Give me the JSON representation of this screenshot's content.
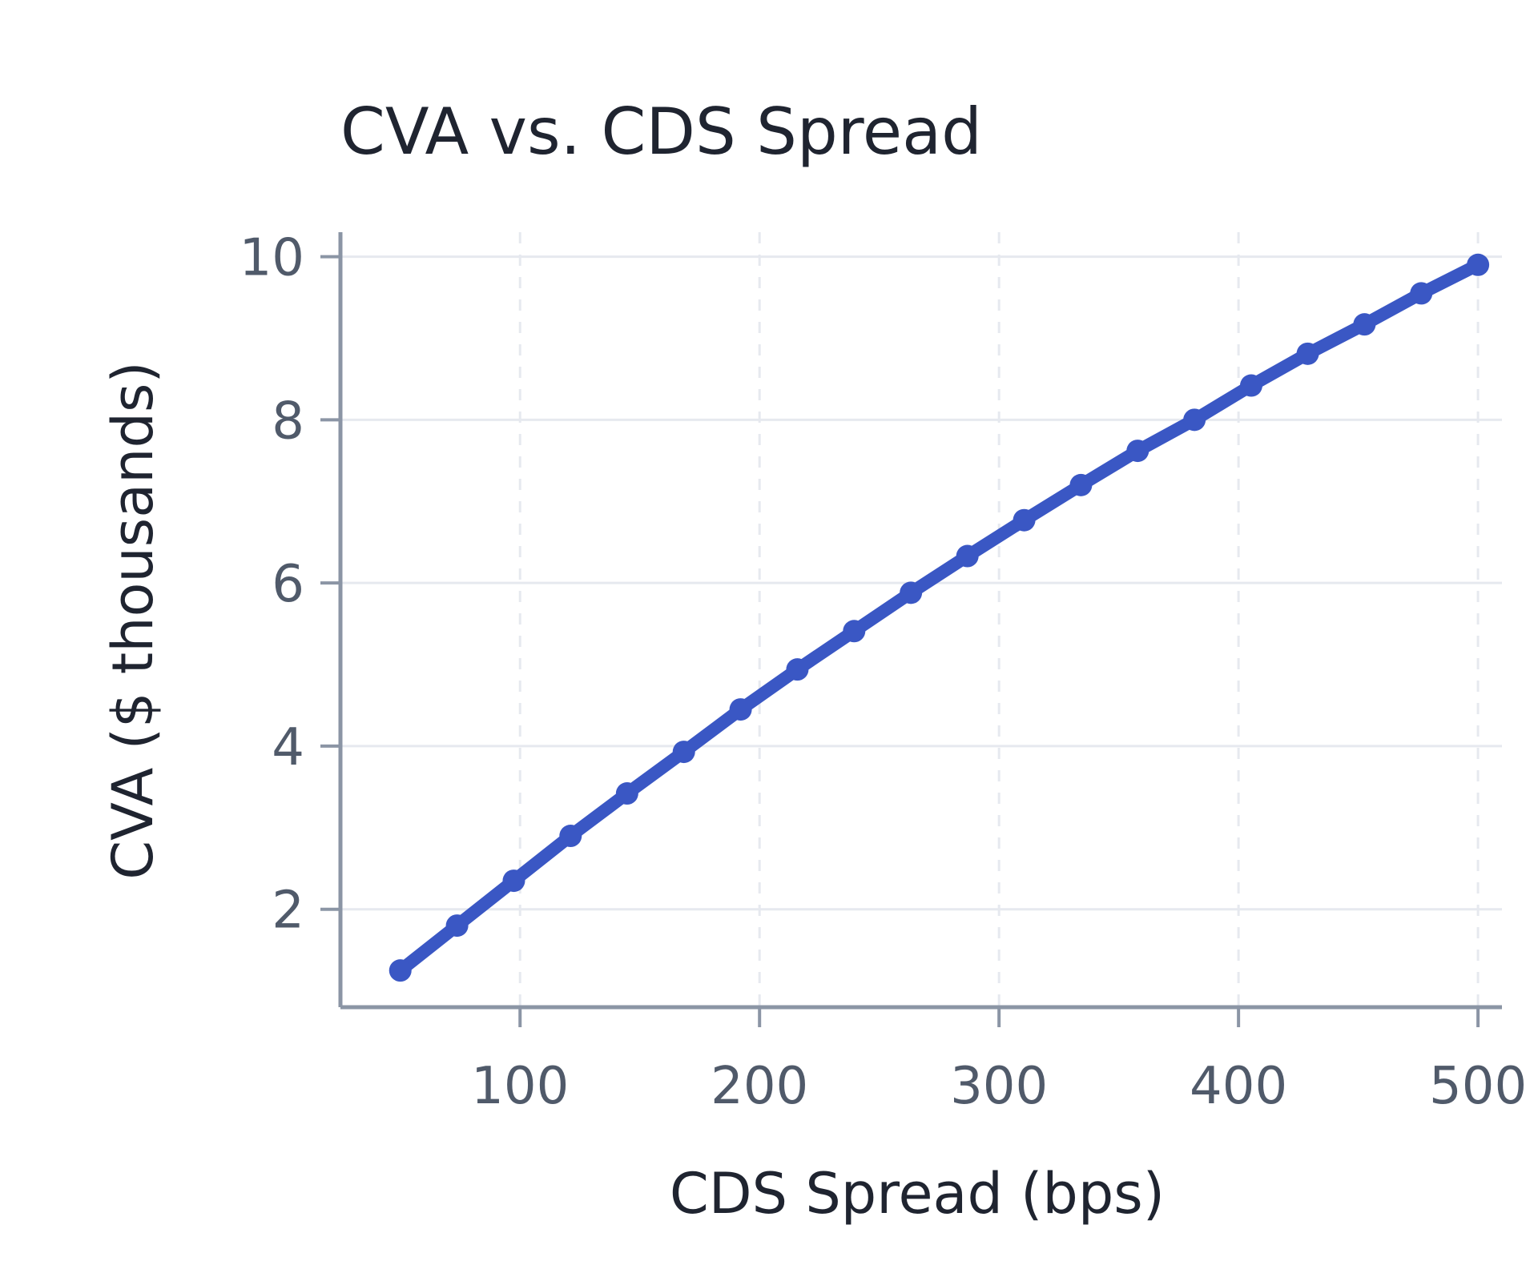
{
  "chart_data": {
    "type": "line",
    "title": "CVA vs. CDS Spread",
    "xlabel": "CDS Spread (bps)",
    "ylabel": "CVA ($ thousands)",
    "xlim": [
      25,
      510
    ],
    "ylim": [
      0.8,
      10.3
    ],
    "x_ticks": [
      100,
      200,
      300,
      400,
      500
    ],
    "y_ticks": [
      2,
      4,
      6,
      8,
      10
    ],
    "x_tick_labels": [
      "100",
      "200",
      "300",
      "400",
      "500"
    ],
    "y_tick_labels": [
      "2",
      "4",
      "6",
      "8",
      "10"
    ],
    "grid": {
      "x": "dashed",
      "y": "solid"
    },
    "colors": {
      "series": "#3a57c4",
      "axis": "#8b95a5",
      "grid": "#e6e9ef",
      "tick_text": "#505a6a",
      "title_text": "#1f2430"
    },
    "series": [
      {
        "x": [
          50,
          73.7,
          97.4,
          121.1,
          144.7,
          168.4,
          192.1,
          215.8,
          239.5,
          263.2,
          286.8,
          310.5,
          334.2,
          357.9,
          381.6,
          405.3,
          428.9,
          452.6,
          476.3,
          500
        ],
        "y": [
          1.25,
          1.8,
          2.35,
          2.9,
          3.42,
          3.93,
          4.45,
          4.94,
          5.41,
          5.88,
          6.33,
          6.77,
          7.2,
          7.62,
          8.0,
          8.42,
          8.81,
          9.17,
          9.55,
          9.9
        ]
      }
    ]
  }
}
